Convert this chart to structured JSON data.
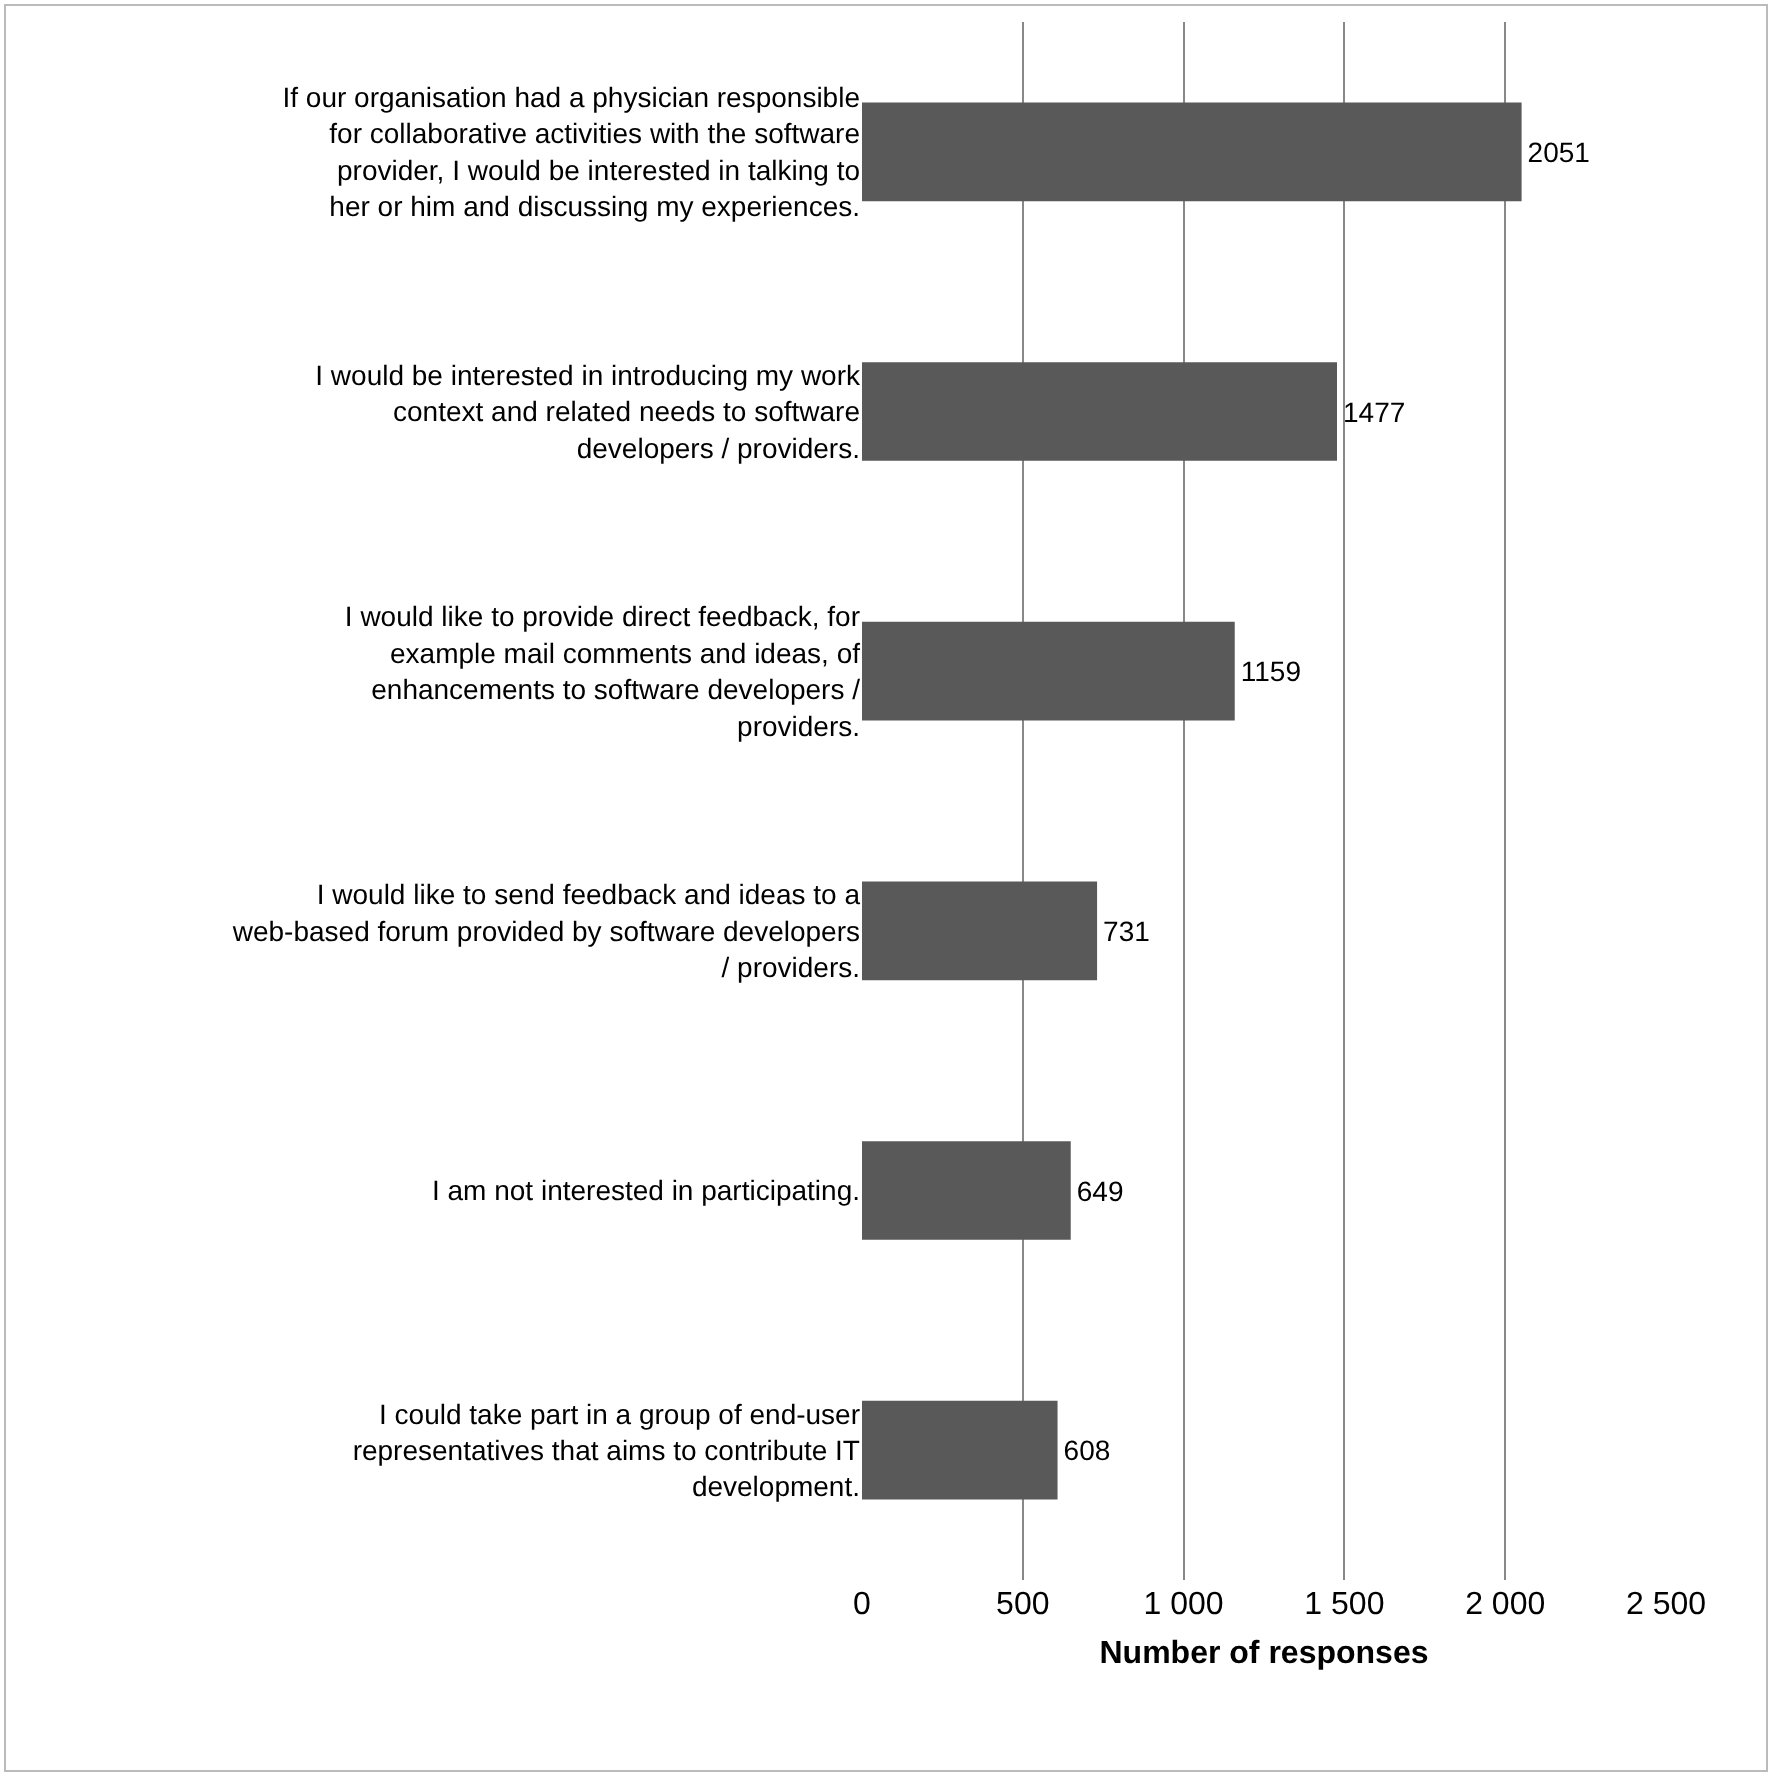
{
  "chart_data": {
    "type": "bar",
    "orientation": "horizontal",
    "xlabel": "Number of responses",
    "categories": [
      "If our organisation had a physician responsible for collaborative activities with the software provider, I would be interested in talking to her or him and discussing my experiences.",
      "I would be interested in introducing my work context and related needs to software developers / providers.",
      "I would like to provide direct feedback, for example mail comments and ideas, of enhancements to software developers / providers.",
      "I would like to send feedback and ideas to a web-based forum provided by software developers / providers.",
      "I am not interested in participating.",
      "I could take part in a group of end-user representatives that aims to contribute IT development."
    ],
    "values": [
      2051,
      1477,
      1159,
      731,
      649,
      608
    ],
    "color": "#595959",
    "data_labels": true,
    "xlim": [
      0,
      2500
    ],
    "xticks": [
      0,
      500,
      {
        "value": 1000,
        "label": "1 000"
      },
      {
        "value": 1500,
        "label": "1 500"
      },
      {
        "value": 2000,
        "label": "2 000"
      },
      {
        "value": 2500,
        "label": "2 500"
      }
    ],
    "grid": "x",
    "legend": false
  }
}
